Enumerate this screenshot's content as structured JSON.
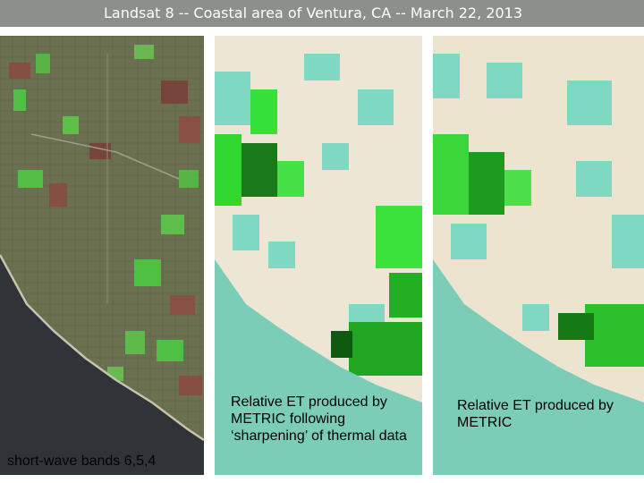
{
  "title": "Landsat 8 -- Coastal area of Ventura, CA -- March 22, 2013",
  "panels": [
    {
      "caption": "short-wave bands 6,5,4"
    },
    {
      "caption": "Relative ET produced by METRIC following ‘sharpening’ of thermal data"
    },
    {
      "caption": "Relative ET produced by METRIC"
    }
  ],
  "colors": {
    "title_bar": "#8c8f8c",
    "ocean_dark": "#303438",
    "land_olive": "#6b7150",
    "ocean_teal": "#7ccdb8",
    "urban_cream": "#eee6d4",
    "field_green": "#2fd62a"
  }
}
